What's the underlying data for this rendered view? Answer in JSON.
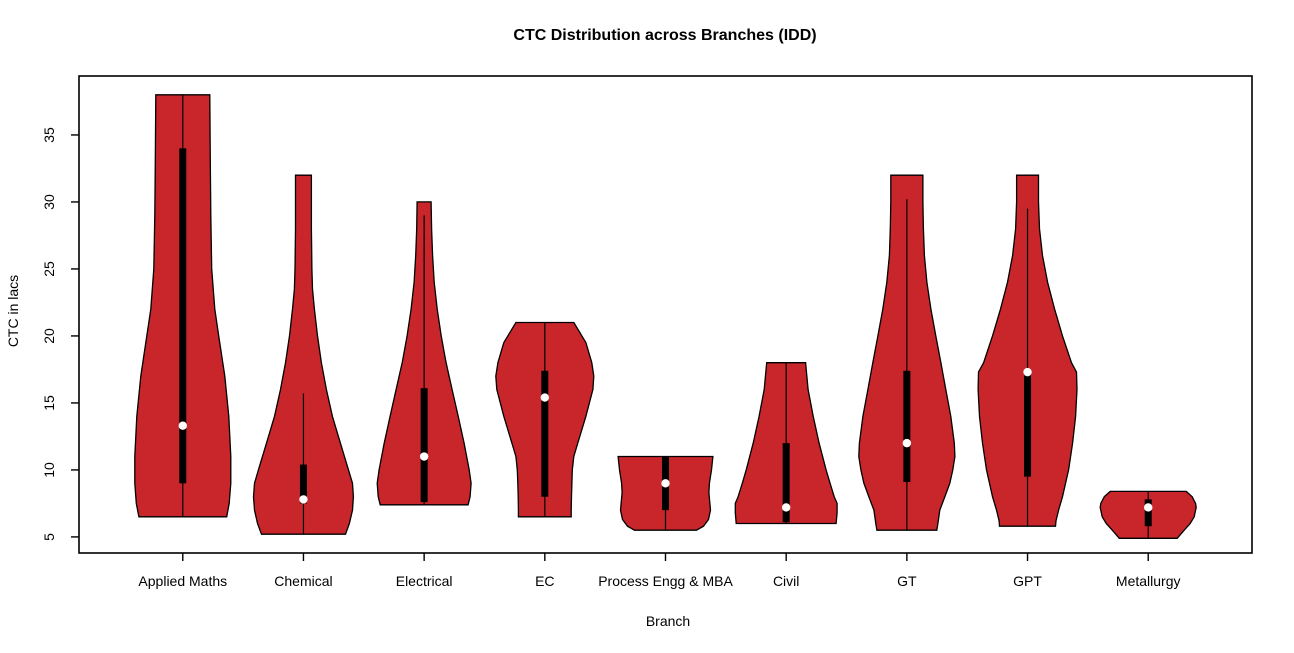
{
  "chart_data": {
    "type": "violin",
    "title": "CTC Distribution across Branches (IDD)",
    "xlabel": "Branch",
    "ylabel": "CTC in lacs",
    "categories": [
      "Applied Maths",
      "Chemical",
      "Electrical",
      "EC",
      "Process Engg & MBA",
      "Civil",
      "GT",
      "GPT",
      "Metallurgy"
    ],
    "y_ticks": [
      5,
      10,
      15,
      20,
      25,
      30,
      35
    ],
    "ylim": [
      3.8,
      39.4
    ],
    "grid": false,
    "legend": "none",
    "fill_color": "#C8262A",
    "outline_color": "#000000",
    "box_color": "#000000",
    "median_dot_color": "#ffffff",
    "series": [
      {
        "branch": "Applied Maths",
        "median": 13.3,
        "q1": 9.0,
        "q3": 34.0,
        "whisker_low": 6.5,
        "whisker_high": 38.0,
        "min": 6.5,
        "max": 38.0,
        "outline": [
          [
            38,
            0.224
          ],
          [
            33,
            0.228
          ],
          [
            29,
            0.232
          ],
          [
            25,
            0.24
          ],
          [
            22,
            0.265
          ],
          [
            20,
            0.298
          ],
          [
            17,
            0.348
          ],
          [
            14,
            0.381
          ],
          [
            11,
            0.398
          ],
          [
            9,
            0.398
          ],
          [
            7.5,
            0.385
          ],
          [
            6.5,
            0.364
          ]
        ]
      },
      {
        "branch": "Chemical",
        "median": 7.8,
        "q1": 7.5,
        "q3": 10.4,
        "whisker_low": 5.2,
        "whisker_high": 15.7,
        "min": 5.2,
        "max": 32.0,
        "outline": [
          [
            32,
            0.066
          ],
          [
            28,
            0.066
          ],
          [
            25,
            0.07
          ],
          [
            23.5,
            0.075
          ],
          [
            22,
            0.091
          ],
          [
            20,
            0.116
          ],
          [
            18,
            0.149
          ],
          [
            16,
            0.19
          ],
          [
            14,
            0.24
          ],
          [
            12,
            0.306
          ],
          [
            10,
            0.373
          ],
          [
            9,
            0.406
          ],
          [
            8,
            0.414
          ],
          [
            7,
            0.406
          ],
          [
            6,
            0.381
          ],
          [
            5.2,
            0.348
          ]
        ]
      },
      {
        "branch": "Electrical",
        "median": 11.0,
        "q1": 7.6,
        "q3": 16.1,
        "whisker_low": 7.4,
        "whisker_high": 29.0,
        "min": 7.4,
        "max": 30.0,
        "outline": [
          [
            30,
            0.058
          ],
          [
            28,
            0.062
          ],
          [
            26,
            0.07
          ],
          [
            24,
            0.083
          ],
          [
            22,
            0.108
          ],
          [
            20,
            0.141
          ],
          [
            18,
            0.182
          ],
          [
            16,
            0.232
          ],
          [
            14,
            0.282
          ],
          [
            12,
            0.331
          ],
          [
            10,
            0.373
          ],
          [
            9,
            0.389
          ],
          [
            8,
            0.381
          ],
          [
            7.4,
            0.364
          ]
        ]
      },
      {
        "branch": "EC",
        "median": 15.4,
        "q1": 8.0,
        "q3": 17.4,
        "whisker_low": 6.5,
        "whisker_high": 21.0,
        "min": 6.5,
        "max": 21.0,
        "outline": [
          [
            21,
            0.24
          ],
          [
            19.5,
            0.34
          ],
          [
            18,
            0.389
          ],
          [
            17,
            0.406
          ],
          [
            16,
            0.398
          ],
          [
            14,
            0.34
          ],
          [
            12,
            0.273
          ],
          [
            11,
            0.24
          ],
          [
            10,
            0.228
          ],
          [
            9,
            0.224
          ],
          [
            8,
            0.221
          ],
          [
            7,
            0.219
          ],
          [
            6.5,
            0.219
          ]
        ]
      },
      {
        "branch": "Process Engg & MBA",
        "median": 9.0,
        "q1": 7.0,
        "q3": 11.0,
        "whisker_low": 5.5,
        "whisker_high": 11.0,
        "min": 5.5,
        "max": 11.0,
        "outline": [
          [
            11,
            0.393
          ],
          [
            10,
            0.381
          ],
          [
            9,
            0.364
          ],
          [
            8.3,
            0.36
          ],
          [
            7,
            0.373
          ],
          [
            6.3,
            0.356
          ],
          [
            5.8,
            0.315
          ],
          [
            5.5,
            0.257
          ]
        ]
      },
      {
        "branch": "Civil",
        "median": 7.2,
        "q1": 6.1,
        "q3": 12.0,
        "whisker_low": 6.0,
        "whisker_high": 18.0,
        "min": 6.0,
        "max": 18.0,
        "outline": [
          [
            18,
            0.161
          ],
          [
            16,
            0.182
          ],
          [
            14,
            0.224
          ],
          [
            12,
            0.273
          ],
          [
            10,
            0.331
          ],
          [
            9,
            0.364
          ],
          [
            8,
            0.398
          ],
          [
            7.5,
            0.422
          ],
          [
            6.8,
            0.422
          ],
          [
            6,
            0.414
          ]
        ]
      },
      {
        "branch": "GT",
        "median": 12.0,
        "q1": 9.1,
        "q3": 17.4,
        "whisker_low": 5.5,
        "whisker_high": 30.2,
        "min": 5.5,
        "max": 32.0,
        "outline": [
          [
            32,
            0.133
          ],
          [
            30,
            0.133
          ],
          [
            28,
            0.137
          ],
          [
            26,
            0.145
          ],
          [
            24,
            0.166
          ],
          [
            22,
            0.199
          ],
          [
            20,
            0.24
          ],
          [
            18,
            0.282
          ],
          [
            16,
            0.323
          ],
          [
            14,
            0.364
          ],
          [
            12,
            0.393
          ],
          [
            11,
            0.398
          ],
          [
            10,
            0.381
          ],
          [
            9,
            0.356
          ],
          [
            8,
            0.315
          ],
          [
            7,
            0.273
          ],
          [
            6,
            0.257
          ],
          [
            5.5,
            0.248
          ]
        ]
      },
      {
        "branch": "GPT",
        "median": 17.3,
        "q1": 9.5,
        "q3": 17.3,
        "whisker_low": 5.8,
        "whisker_high": 29.5,
        "min": 5.8,
        "max": 32.0,
        "outline": [
          [
            32,
            0.091
          ],
          [
            30,
            0.091
          ],
          [
            28,
            0.099
          ],
          [
            26,
            0.124
          ],
          [
            24,
            0.166
          ],
          [
            22,
            0.224
          ],
          [
            20,
            0.29
          ],
          [
            18,
            0.364
          ],
          [
            17.3,
            0.406
          ],
          [
            16,
            0.41
          ],
          [
            14,
            0.398
          ],
          [
            12,
            0.373
          ],
          [
            10,
            0.34
          ],
          [
            8,
            0.29
          ],
          [
            7,
            0.257
          ],
          [
            6.2,
            0.236
          ],
          [
            5.8,
            0.232
          ]
        ]
      },
      {
        "branch": "Metallurgy",
        "median": 7.2,
        "q1": 5.8,
        "q3": 7.8,
        "whisker_low": 4.9,
        "whisker_high": 8.4,
        "min": 4.9,
        "max": 8.4,
        "outline": [
          [
            8.4,
            0.315
          ],
          [
            8,
            0.364
          ],
          [
            7.5,
            0.393
          ],
          [
            7.2,
            0.398
          ],
          [
            6.5,
            0.381
          ],
          [
            6,
            0.348
          ],
          [
            5.5,
            0.298
          ],
          [
            4.9,
            0.24
          ]
        ]
      }
    ]
  }
}
